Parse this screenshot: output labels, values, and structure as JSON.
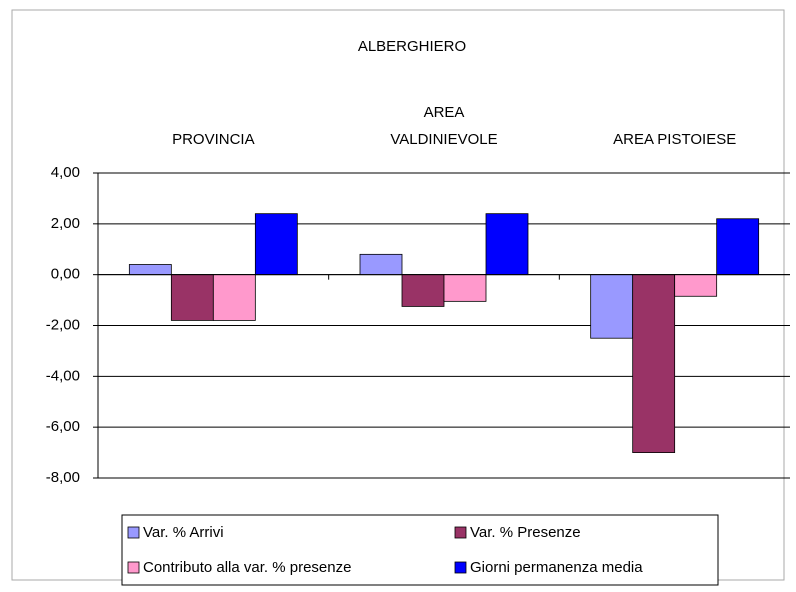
{
  "chart_data": {
    "type": "bar",
    "title": "ALBERGHIERO",
    "categories": [
      [
        "PROVINCIA"
      ],
      [
        "AREA",
        "VALDINIEVOLE"
      ],
      [
        "AREA PISTOIESE"
      ]
    ],
    "series": [
      {
        "name": "Var. % Arrivi",
        "color": "#9999ff",
        "values": [
          0.4,
          0.8,
          -2.5
        ]
      },
      {
        "name": "Var. % Presenze",
        "color": "#993366",
        "values": [
          -1.8,
          -1.25,
          -7.0
        ]
      },
      {
        "name": "Contributo alla var. % presenze",
        "color": "#ff99cc",
        "values": [
          -1.8,
          -1.05,
          -0.85
        ]
      },
      {
        "name": "Giorni permanenza media",
        "color": "#0000ff",
        "values": [
          2.4,
          2.4,
          2.2
        ]
      }
    ],
    "ylim": [
      -8,
      4
    ],
    "yticks": [
      {
        "value": 4,
        "label": "4,00"
      },
      {
        "value": 2,
        "label": "2,00"
      },
      {
        "value": 0,
        "label": "0,00"
      },
      {
        "value": -2,
        "label": "-2,00"
      },
      {
        "value": -4,
        "label": "-4,00"
      },
      {
        "value": -6,
        "label": "-6,00"
      },
      {
        "value": -8,
        "label": "-8,00"
      }
    ],
    "grid": true
  }
}
